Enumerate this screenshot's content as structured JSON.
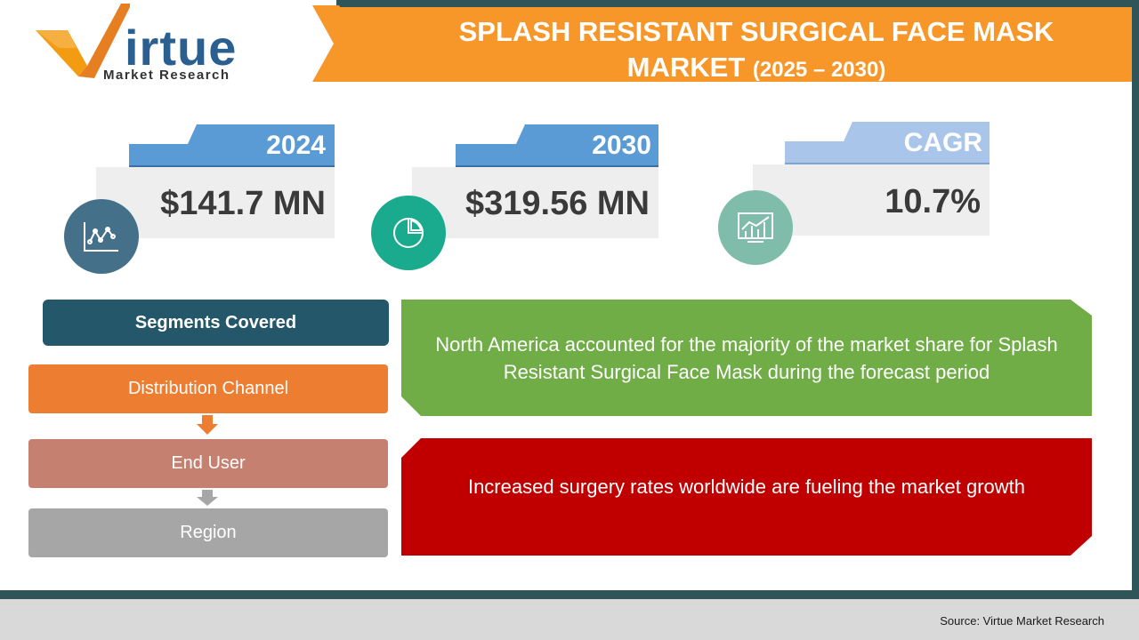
{
  "logo": {
    "word": "irtue",
    "subtitle": "Market Research"
  },
  "title": {
    "line1": "SPLASH RESISTANT SURGICAL FACE MASK",
    "line2": "MARKET",
    "years": "(2025 – 2030)"
  },
  "stats": [
    {
      "label": "2024",
      "value": "$141.7 MN",
      "icon": "line-chart-icon",
      "tab_color": "#5b9bd5",
      "circle_color": "#44708a"
    },
    {
      "label": "2030",
      "value": "$319.56 MN",
      "icon": "pie-chart-icon",
      "tab_color": "#5b9bd5",
      "circle_color": "#1aaa8d"
    },
    {
      "label": "CAGR",
      "value": "10.7%",
      "icon": "bar-chart-icon",
      "tab_color": "#a9c6ea",
      "circle_color": "#7fbcaa"
    }
  ],
  "segments": {
    "header": "Segments Covered",
    "items": [
      "Distribution Channel",
      "End User",
      "Region"
    ]
  },
  "insights": [
    "North America accounted for the majority of the market share for Splash Resistant Surgical Face Mask during the forecast period",
    "Increased surgery rates worldwide are fueling the market growth"
  ],
  "footer": {
    "source": "Source: Virtue Market Research"
  },
  "colors": {
    "accent_orange": "#f7972a",
    "frame": "#2f5559",
    "green": "#70ad47",
    "red": "#c00000"
  }
}
